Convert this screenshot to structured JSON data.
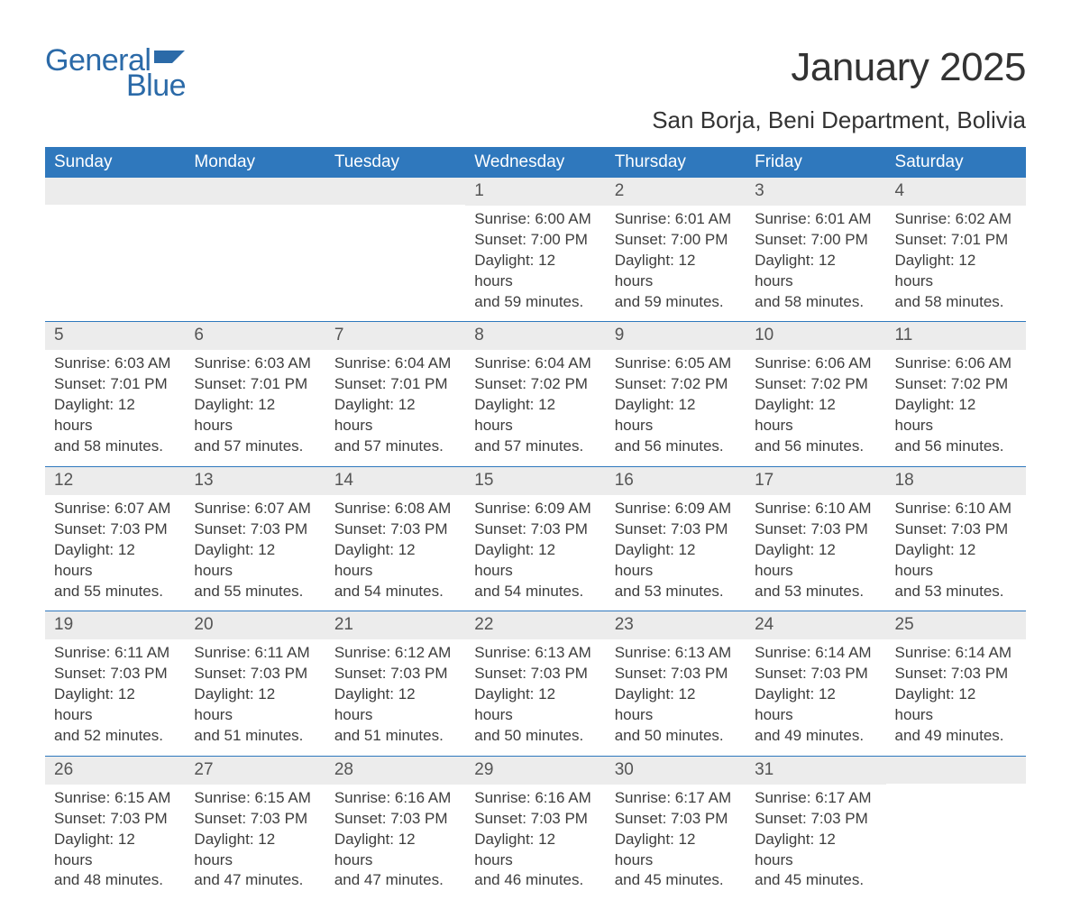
{
  "colors": {
    "brand": "#2b6aa8",
    "header_bg": "#2f78bd",
    "header_text": "#ffffff",
    "daynum_bg": "#ececec",
    "daynum_text": "#555555",
    "body_text": "#3d3d3d",
    "page_bg": "#ffffff"
  },
  "logo": {
    "line1": "General",
    "line2": "Blue"
  },
  "title": "January 2025",
  "location": "San Borja, Beni Department, Bolivia",
  "weekday_headers": [
    "Sunday",
    "Monday",
    "Tuesday",
    "Wednesday",
    "Thursday",
    "Friday",
    "Saturday"
  ],
  "cell_labels": {
    "sunrise": "Sunrise:",
    "sunset": "Sunset:",
    "daylight": "Daylight:"
  },
  "weeks": [
    [
      null,
      null,
      null,
      {
        "n": "1",
        "sunrise": "6:00 AM",
        "sunset": "7:00 PM",
        "daylight_h": "12",
        "daylight_m": "59"
      },
      {
        "n": "2",
        "sunrise": "6:01 AM",
        "sunset": "7:00 PM",
        "daylight_h": "12",
        "daylight_m": "59"
      },
      {
        "n": "3",
        "sunrise": "6:01 AM",
        "sunset": "7:00 PM",
        "daylight_h": "12",
        "daylight_m": "58"
      },
      {
        "n": "4",
        "sunrise": "6:02 AM",
        "sunset": "7:01 PM",
        "daylight_h": "12",
        "daylight_m": "58"
      }
    ],
    [
      {
        "n": "5",
        "sunrise": "6:03 AM",
        "sunset": "7:01 PM",
        "daylight_h": "12",
        "daylight_m": "58"
      },
      {
        "n": "6",
        "sunrise": "6:03 AM",
        "sunset": "7:01 PM",
        "daylight_h": "12",
        "daylight_m": "57"
      },
      {
        "n": "7",
        "sunrise": "6:04 AM",
        "sunset": "7:01 PM",
        "daylight_h": "12",
        "daylight_m": "57"
      },
      {
        "n": "8",
        "sunrise": "6:04 AM",
        "sunset": "7:02 PM",
        "daylight_h": "12",
        "daylight_m": "57"
      },
      {
        "n": "9",
        "sunrise": "6:05 AM",
        "sunset": "7:02 PM",
        "daylight_h": "12",
        "daylight_m": "56"
      },
      {
        "n": "10",
        "sunrise": "6:06 AM",
        "sunset": "7:02 PM",
        "daylight_h": "12",
        "daylight_m": "56"
      },
      {
        "n": "11",
        "sunrise": "6:06 AM",
        "sunset": "7:02 PM",
        "daylight_h": "12",
        "daylight_m": "56"
      }
    ],
    [
      {
        "n": "12",
        "sunrise": "6:07 AM",
        "sunset": "7:03 PM",
        "daylight_h": "12",
        "daylight_m": "55"
      },
      {
        "n": "13",
        "sunrise": "6:07 AM",
        "sunset": "7:03 PM",
        "daylight_h": "12",
        "daylight_m": "55"
      },
      {
        "n": "14",
        "sunrise": "6:08 AM",
        "sunset": "7:03 PM",
        "daylight_h": "12",
        "daylight_m": "54"
      },
      {
        "n": "15",
        "sunrise": "6:09 AM",
        "sunset": "7:03 PM",
        "daylight_h": "12",
        "daylight_m": "54"
      },
      {
        "n": "16",
        "sunrise": "6:09 AM",
        "sunset": "7:03 PM",
        "daylight_h": "12",
        "daylight_m": "53"
      },
      {
        "n": "17",
        "sunrise": "6:10 AM",
        "sunset": "7:03 PM",
        "daylight_h": "12",
        "daylight_m": "53"
      },
      {
        "n": "18",
        "sunrise": "6:10 AM",
        "sunset": "7:03 PM",
        "daylight_h": "12",
        "daylight_m": "53"
      }
    ],
    [
      {
        "n": "19",
        "sunrise": "6:11 AM",
        "sunset": "7:03 PM",
        "daylight_h": "12",
        "daylight_m": "52"
      },
      {
        "n": "20",
        "sunrise": "6:11 AM",
        "sunset": "7:03 PM",
        "daylight_h": "12",
        "daylight_m": "51"
      },
      {
        "n": "21",
        "sunrise": "6:12 AM",
        "sunset": "7:03 PM",
        "daylight_h": "12",
        "daylight_m": "51"
      },
      {
        "n": "22",
        "sunrise": "6:13 AM",
        "sunset": "7:03 PM",
        "daylight_h": "12",
        "daylight_m": "50"
      },
      {
        "n": "23",
        "sunrise": "6:13 AM",
        "sunset": "7:03 PM",
        "daylight_h": "12",
        "daylight_m": "50"
      },
      {
        "n": "24",
        "sunrise": "6:14 AM",
        "sunset": "7:03 PM",
        "daylight_h": "12",
        "daylight_m": "49"
      },
      {
        "n": "25",
        "sunrise": "6:14 AM",
        "sunset": "7:03 PM",
        "daylight_h": "12",
        "daylight_m": "49"
      }
    ],
    [
      {
        "n": "26",
        "sunrise": "6:15 AM",
        "sunset": "7:03 PM",
        "daylight_h": "12",
        "daylight_m": "48"
      },
      {
        "n": "27",
        "sunrise": "6:15 AM",
        "sunset": "7:03 PM",
        "daylight_h": "12",
        "daylight_m": "47"
      },
      {
        "n": "28",
        "sunrise": "6:16 AM",
        "sunset": "7:03 PM",
        "daylight_h": "12",
        "daylight_m": "47"
      },
      {
        "n": "29",
        "sunrise": "6:16 AM",
        "sunset": "7:03 PM",
        "daylight_h": "12",
        "daylight_m": "46"
      },
      {
        "n": "30",
        "sunrise": "6:17 AM",
        "sunset": "7:03 PM",
        "daylight_h": "12",
        "daylight_m": "45"
      },
      {
        "n": "31",
        "sunrise": "6:17 AM",
        "sunset": "7:03 PM",
        "daylight_h": "12",
        "daylight_m": "45"
      },
      null
    ]
  ]
}
